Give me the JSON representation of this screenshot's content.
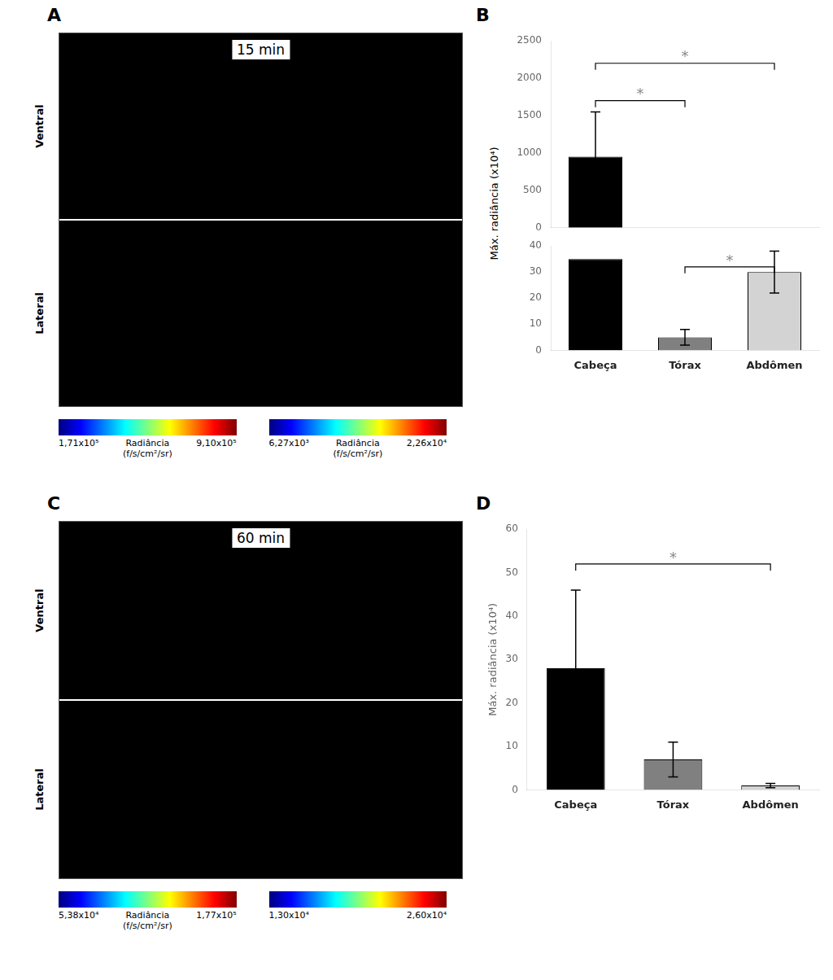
{
  "chart_data": [
    {
      "type": "image",
      "panel_label": "A",
      "title": "15 min",
      "section_labels": [
        "Ventral",
        "Lateral"
      ],
      "colorbars": [
        {
          "clim": [
            171000,
            910000
          ],
          "cticks": [
            {
              "value": 171000,
              "label": "1,71x10⁵"
            },
            {
              "value": 910000,
              "label": "9,10x10⁵"
            }
          ],
          "label": "Radiância\n(f/s/cm²/sr)"
        },
        {
          "clim": [
            6270,
            22600
          ],
          "cticks": [
            {
              "value": 6270,
              "label": "6,27x10³"
            },
            {
              "value": 22600,
              "label": "2,26x10⁴"
            }
          ],
          "label": "Radiância\n(f/s/cm²/sr)"
        }
      ]
    },
    {
      "type": "bar",
      "panel_label": "B",
      "ylabel": "Máx. radiância (x10⁴)",
      "categories": [
        "Cabeça",
        "Tórax",
        "Abdômen"
      ],
      "values": [
        950,
        0,
        0
      ],
      "errors": [
        600,
        0,
        0
      ],
      "colors": [
        "#000000",
        "#808080",
        "#d3d3d3"
      ],
      "ylim": [
        0,
        2500
      ],
      "yticks": [
        0,
        500,
        1000,
        1500,
        2000,
        2500
      ],
      "grid": false,
      "tick_labels": "y",
      "annotations": [
        {
          "text": "*",
          "from": "Cabeça",
          "to": "Tórax",
          "y": 1700
        },
        {
          "text": "*",
          "from": "Cabeça",
          "to": "Abdômen",
          "y": 2200
        }
      ]
    },
    {
      "type": "bar",
      "categories": [
        "Cabeça",
        "Tórax",
        "Abdômen"
      ],
      "values": [
        35,
        5,
        30
      ],
      "errors": [
        0,
        3,
        8
      ],
      "colors": [
        "#000000",
        "#808080",
        "#d3d3d3"
      ],
      "ylim": [
        0,
        40
      ],
      "yticks": [
        0,
        10,
        20,
        30,
        40
      ],
      "grid": false,
      "annotations": [
        {
          "text": "*",
          "from": "Tórax",
          "to": "Abdômen",
          "y": 32
        }
      ]
    },
    {
      "type": "image",
      "panel_label": "C",
      "title": "60 min",
      "section_labels": [
        "Ventral",
        "Lateral"
      ],
      "colorbars": [
        {
          "clim": [
            53800,
            177000
          ],
          "cticks": [
            {
              "value": 53800,
              "label": "5,38x10⁴"
            },
            {
              "value": 177000,
              "label": "1,77x10⁵"
            }
          ],
          "label": "Radiância\n(f/s/cm²/sr)"
        },
        {
          "clim": [
            13000,
            26000
          ],
          "cticks": [
            {
              "value": 13000,
              "label": "1,30x10⁴"
            },
            {
              "value": 26000,
              "label": "2,60x10⁴"
            }
          ]
        }
      ]
    },
    {
      "type": "bar",
      "panel_label": "D",
      "ylabel": "Máx. radiância (x10⁴)",
      "categories": [
        "Cabeça",
        "Tórax",
        "Abdômen"
      ],
      "values": [
        28,
        7,
        1
      ],
      "errors": [
        18,
        4,
        0.5
      ],
      "colors": [
        "#000000",
        "#808080",
        "#d3d3d3"
      ],
      "ylim": [
        0,
        60
      ],
      "yticks": [
        0,
        10,
        20,
        30,
        40,
        50,
        60
      ],
      "grid": false,
      "annotations": [
        {
          "text": "*",
          "from": "Cabeça",
          "to": "Abdômen",
          "y": 52
        }
      ]
    }
  ]
}
